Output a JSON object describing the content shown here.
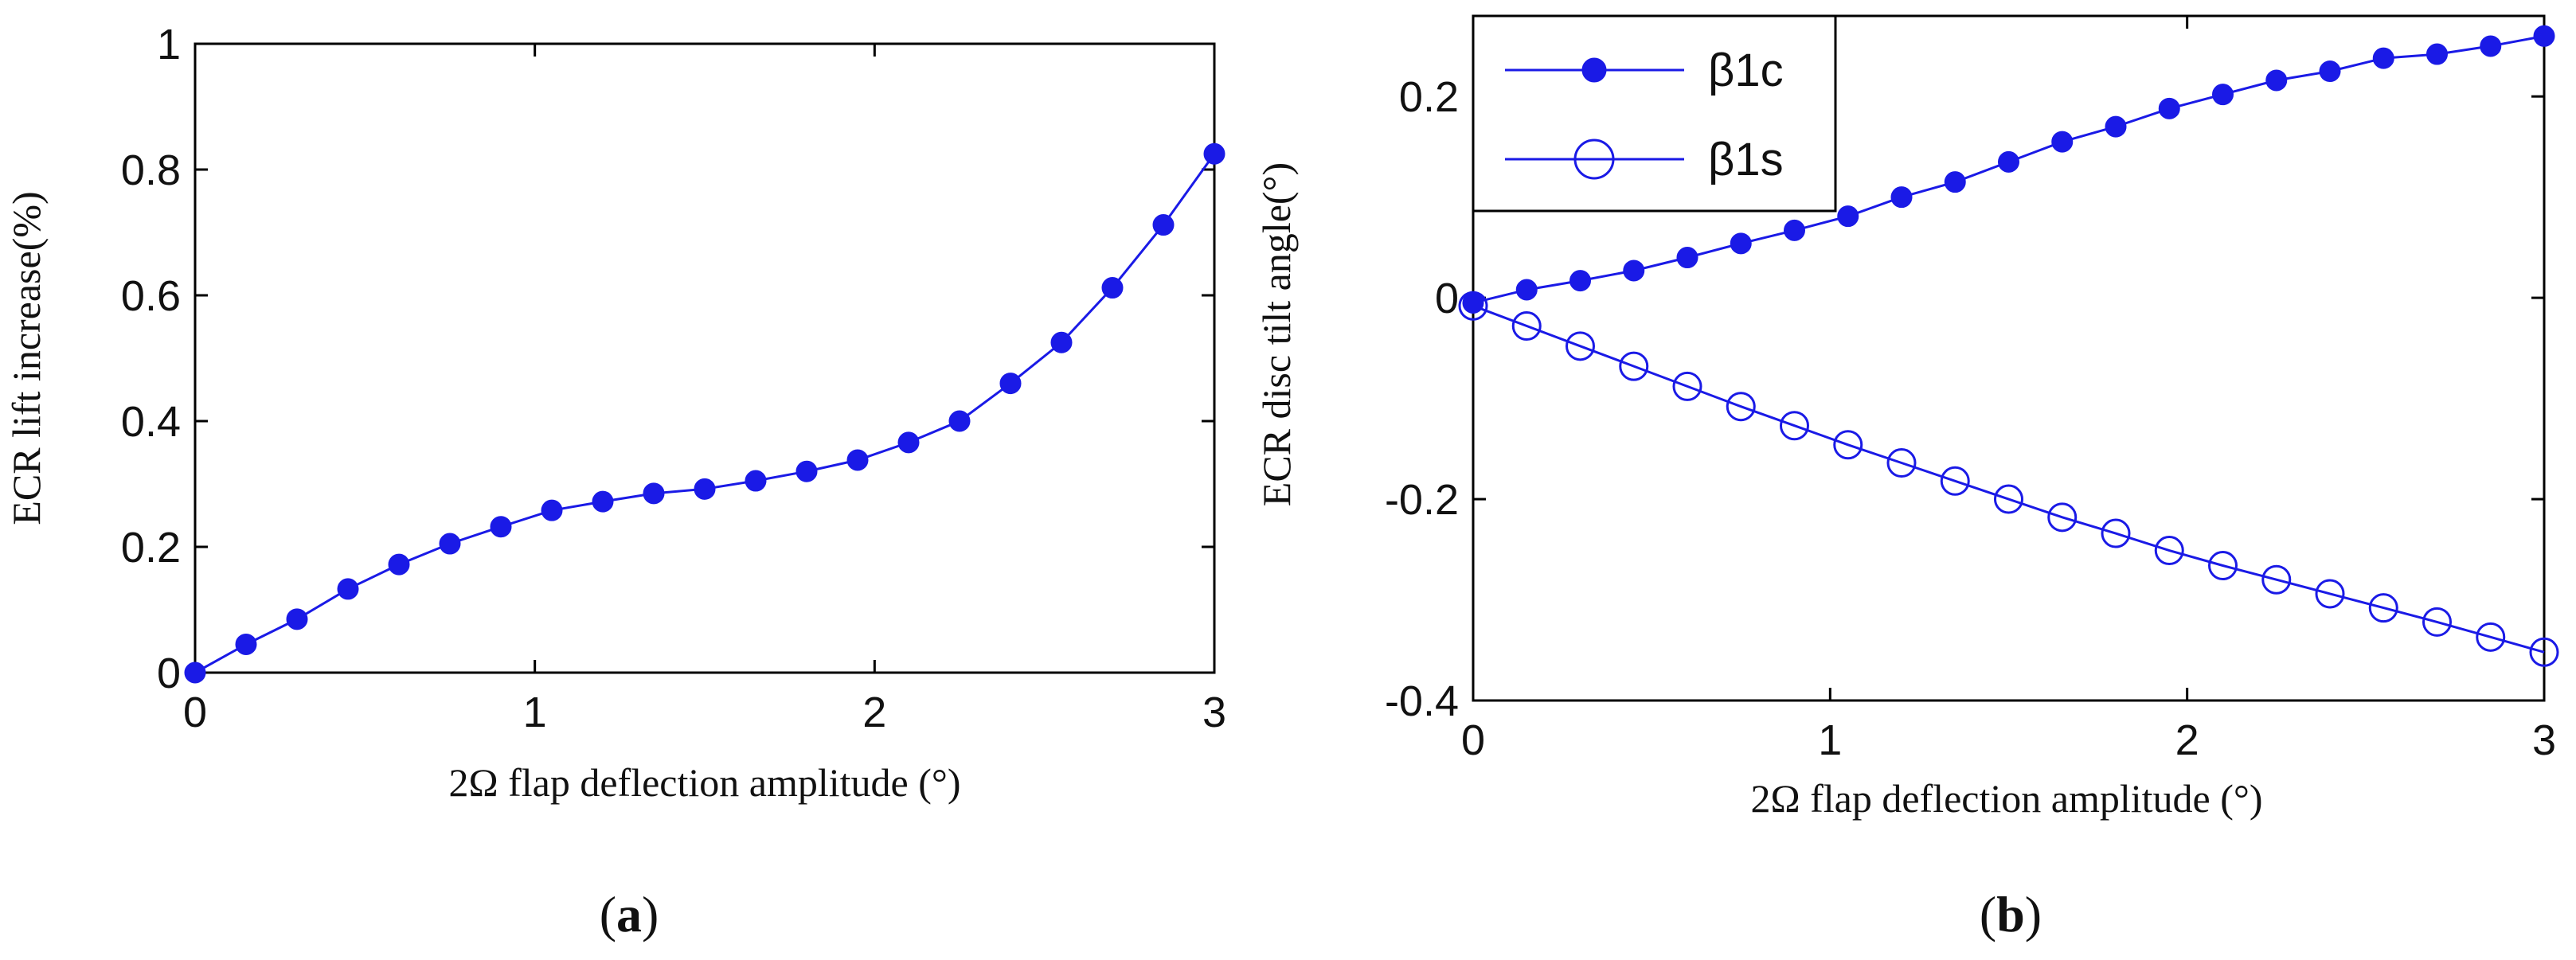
{
  "chart_data": [
    {
      "type": "line",
      "panel_label": "a",
      "xlabel": "2Ω flap deflection amplitude (°)",
      "ylabel": "ECR lift increase(%)",
      "xlim": [
        0,
        3
      ],
      "ylim": [
        0,
        1
      ],
      "xticks": [
        "0",
        "1",
        "2",
        "3"
      ],
      "yticks": [
        "0",
        "0.2",
        "0.4",
        "0.6",
        "0.8",
        "1"
      ],
      "grid": false,
      "color": "#1a1ae6",
      "series": [
        {
          "name": "lift increase",
          "marker": "filled-circle",
          "x": [
            0,
            0.15,
            0.3,
            0.45,
            0.6,
            0.75,
            0.9,
            1.05,
            1.2,
            1.35,
            1.5,
            1.65,
            1.8,
            1.95,
            2.1,
            2.25,
            2.4,
            2.55,
            2.7,
            2.85,
            3.0
          ],
          "y": [
            0,
            0.045,
            0.085,
            0.133,
            0.172,
            0.205,
            0.232,
            0.258,
            0.272,
            0.285,
            0.292,
            0.305,
            0.32,
            0.338,
            0.366,
            0.4,
            0.46,
            0.525,
            0.612,
            0.712,
            0.825
          ]
        }
      ]
    },
    {
      "type": "line",
      "panel_label": "b",
      "xlabel": "2Ω flap deflection amplitude (°)",
      "ylabel": "ECR disc tilt angle(°)",
      "xlim": [
        0,
        3
      ],
      "ylim": [
        -0.4,
        0.28
      ],
      "xticks": [
        "0",
        "1",
        "2",
        "3"
      ],
      "yticks": [
        "-0.4",
        "-0.2",
        "0",
        "0.2"
      ],
      "grid": false,
      "color": "#1a1ae6",
      "legend_position": "top-left",
      "series": [
        {
          "name": "β1c",
          "marker": "filled-circle",
          "x": [
            0,
            0.15,
            0.3,
            0.45,
            0.6,
            0.75,
            0.9,
            1.05,
            1.2,
            1.35,
            1.5,
            1.65,
            1.8,
            1.95,
            2.1,
            2.25,
            2.4,
            2.55,
            2.7,
            2.85,
            3.0
          ],
          "y": [
            -0.005,
            0.008,
            0.017,
            0.027,
            0.04,
            0.054,
            0.067,
            0.081,
            0.1,
            0.115,
            0.135,
            0.155,
            0.17,
            0.188,
            0.202,
            0.216,
            0.225,
            0.238,
            0.242,
            0.25,
            0.26
          ]
        },
        {
          "name": "β1s",
          "marker": "open-circle",
          "x": [
            0,
            0.15,
            0.3,
            0.45,
            0.6,
            0.75,
            0.9,
            1.05,
            1.2,
            1.35,
            1.5,
            1.65,
            1.8,
            1.95,
            2.1,
            2.25,
            2.4,
            2.55,
            2.7,
            2.85,
            3.0
          ],
          "y": [
            -0.008,
            -0.028,
            -0.048,
            -0.068,
            -0.088,
            -0.108,
            -0.127,
            -0.146,
            -0.164,
            -0.182,
            -0.2,
            -0.218,
            -0.234,
            -0.251,
            -0.266,
            -0.28,
            -0.294,
            -0.308,
            -0.322,
            -0.337,
            -0.352
          ]
        }
      ]
    }
  ]
}
